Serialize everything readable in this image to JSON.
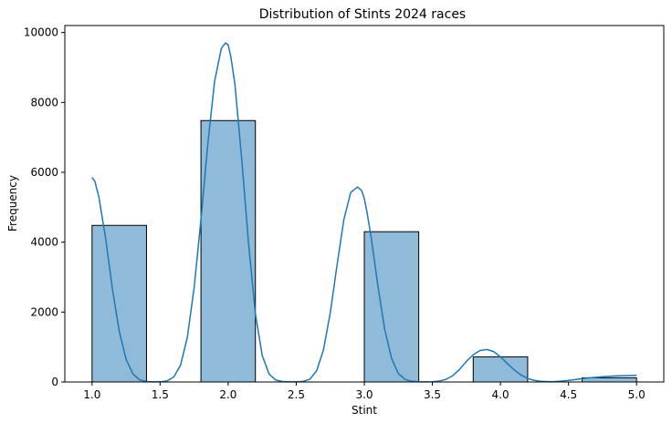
{
  "chart_data": {
    "type": "bar",
    "title": "Distribution of Stints 2024 races",
    "xlabel": "Stint",
    "ylabel": "Frequency",
    "xlim": [
      0.8,
      5.2
    ],
    "ylim": [
      0,
      10200
    ],
    "x_ticks": [
      1.0,
      1.5,
      2.0,
      2.5,
      3.0,
      3.5,
      4.0,
      4.5,
      5.0
    ],
    "x_tick_labels": [
      "1.0",
      "1.5",
      "2.0",
      "2.5",
      "3.0",
      "3.5",
      "4.0",
      "4.5",
      "5.0"
    ],
    "y_ticks": [
      0,
      2000,
      4000,
      6000,
      8000,
      10000
    ],
    "y_tick_labels": [
      "0",
      "2000",
      "4000",
      "6000",
      "8000",
      "10000"
    ],
    "bins": [
      {
        "x0": 1.0,
        "x1": 1.4,
        "value": 4480
      },
      {
        "x0": 1.8,
        "x1": 2.2,
        "value": 7480
      },
      {
        "x0": 3.0,
        "x1": 3.4,
        "value": 4300
      },
      {
        "x0": 3.8,
        "x1": 4.2,
        "value": 720
      },
      {
        "x0": 4.6,
        "x1": 5.0,
        "value": 120
      }
    ],
    "kde": {
      "x": [
        1.0,
        1.02,
        1.05,
        1.1,
        1.15,
        1.2,
        1.25,
        1.3,
        1.35,
        1.4,
        1.45,
        1.5,
        1.55,
        1.6,
        1.65,
        1.7,
        1.75,
        1.8,
        1.85,
        1.9,
        1.95,
        1.98,
        2.0,
        2.02,
        2.05,
        2.1,
        2.15,
        2.2,
        2.25,
        2.3,
        2.35,
        2.4,
        2.45,
        2.5,
        2.55,
        2.6,
        2.65,
        2.7,
        2.75,
        2.8,
        2.85,
        2.9,
        2.95,
        2.98,
        3.0,
        3.02,
        3.05,
        3.1,
        3.15,
        3.2,
        3.25,
        3.3,
        3.35,
        3.4,
        3.45,
        3.5,
        3.55,
        3.6,
        3.65,
        3.7,
        3.75,
        3.8,
        3.85,
        3.9,
        3.95,
        4.0,
        4.05,
        4.1,
        4.15,
        4.2,
        4.25,
        4.3,
        4.35,
        4.4,
        4.45,
        4.5,
        4.55,
        4.6,
        4.65,
        4.7,
        4.75,
        4.8,
        4.85,
        4.9,
        4.95,
        5.0
      ],
      "y": [
        5850,
        5750,
        5300,
        4100,
        2650,
        1450,
        650,
        230,
        60,
        12,
        3,
        5,
        30,
        140,
        480,
        1280,
        2700,
        4650,
        6800,
        8600,
        9550,
        9700,
        9650,
        9300,
        8500,
        6350,
        3950,
        1950,
        760,
        230,
        55,
        12,
        3,
        2,
        15,
        80,
        320,
        920,
        1980,
        3350,
        4650,
        5420,
        5580,
        5480,
        5250,
        4850,
        4150,
        2750,
        1500,
        680,
        240,
        70,
        18,
        5,
        3,
        8,
        25,
        75,
        180,
        360,
        590,
        780,
        900,
        930,
        870,
        720,
        530,
        350,
        200,
        100,
        45,
        18,
        10,
        12,
        25,
        45,
        70,
        95,
        118,
        135,
        150,
        162,
        172,
        180,
        185,
        188
      ]
    },
    "colors": {
      "bar_fill": "#1f77b4",
      "bar_fill_opacity": 0.5,
      "bar_edge": "#000000",
      "kde_line": "#1f77b4"
    }
  }
}
